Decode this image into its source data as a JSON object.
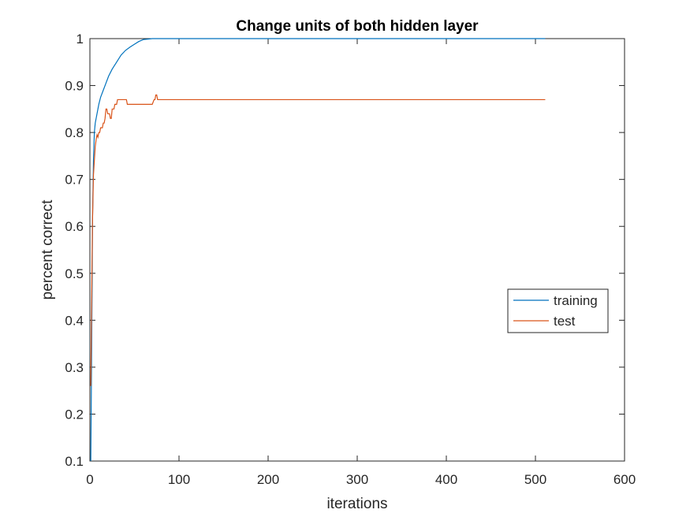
{
  "chart_data": {
    "type": "line",
    "title": "Change units of both hidden layer",
    "xlabel": "iterations",
    "ylabel": "percent correct",
    "xlim": [
      0,
      600
    ],
    "ylim": [
      0.1,
      1
    ],
    "xticks": [
      0,
      100,
      200,
      300,
      400,
      500,
      600
    ],
    "yticks": [
      0.1,
      0.2,
      0.3,
      0.4,
      0.5,
      0.6,
      0.7,
      0.8,
      0.9,
      1
    ],
    "xtick_labels": [
      "0",
      "100",
      "200",
      "300",
      "400",
      "500",
      "600"
    ],
    "ytick_labels": [
      "0.1",
      "0.2",
      "0.3",
      "0.4",
      "0.5",
      "0.6",
      "0.7",
      "0.8",
      "0.9",
      "1"
    ],
    "grid": false,
    "legend_position": "right",
    "series": [
      {
        "name": "training",
        "color": "#0072BD",
        "x": [
          1,
          2,
          3,
          4,
          5,
          6,
          8,
          10,
          12,
          15,
          18,
          21,
          25,
          30,
          35,
          40,
          45,
          50,
          55,
          60,
          65,
          70,
          80,
          90,
          100,
          150,
          200,
          300,
          400,
          500,
          511
        ],
        "y": [
          0.1,
          0.35,
          0.62,
          0.74,
          0.8,
          0.82,
          0.84,
          0.86,
          0.875,
          0.89,
          0.905,
          0.92,
          0.935,
          0.95,
          0.965,
          0.975,
          0.982,
          0.988,
          0.994,
          0.998,
          0.999,
          1.0,
          1.0,
          1.0,
          1.0,
          1.0,
          1.0,
          1.0,
          1.0,
          1.0,
          1.0
        ]
      },
      {
        "name": "test",
        "color": "#D95319",
        "x": [
          1,
          2,
          3,
          4,
          5,
          6,
          7,
          8,
          9,
          10,
          11,
          12,
          13,
          14,
          15,
          16,
          17,
          18,
          19,
          20,
          21,
          22,
          23,
          24,
          25,
          26,
          27,
          28,
          29,
          30,
          31,
          32,
          33,
          34,
          38,
          41,
          42,
          44,
          50,
          55,
          60,
          65,
          70,
          72,
          73,
          74,
          75,
          76,
          80,
          100,
          200,
          300,
          400,
          500,
          511
        ],
        "y": [
          0.26,
          0.45,
          0.62,
          0.71,
          0.74,
          0.77,
          0.785,
          0.795,
          0.79,
          0.8,
          0.8,
          0.81,
          0.81,
          0.81,
          0.82,
          0.82,
          0.83,
          0.85,
          0.85,
          0.84,
          0.84,
          0.84,
          0.83,
          0.83,
          0.85,
          0.85,
          0.85,
          0.86,
          0.86,
          0.86,
          0.87,
          0.87,
          0.87,
          0.87,
          0.87,
          0.87,
          0.86,
          0.86,
          0.86,
          0.86,
          0.86,
          0.86,
          0.86,
          0.87,
          0.87,
          0.88,
          0.88,
          0.87,
          0.87,
          0.87,
          0.87,
          0.87,
          0.87,
          0.87,
          0.87
        ]
      }
    ]
  }
}
